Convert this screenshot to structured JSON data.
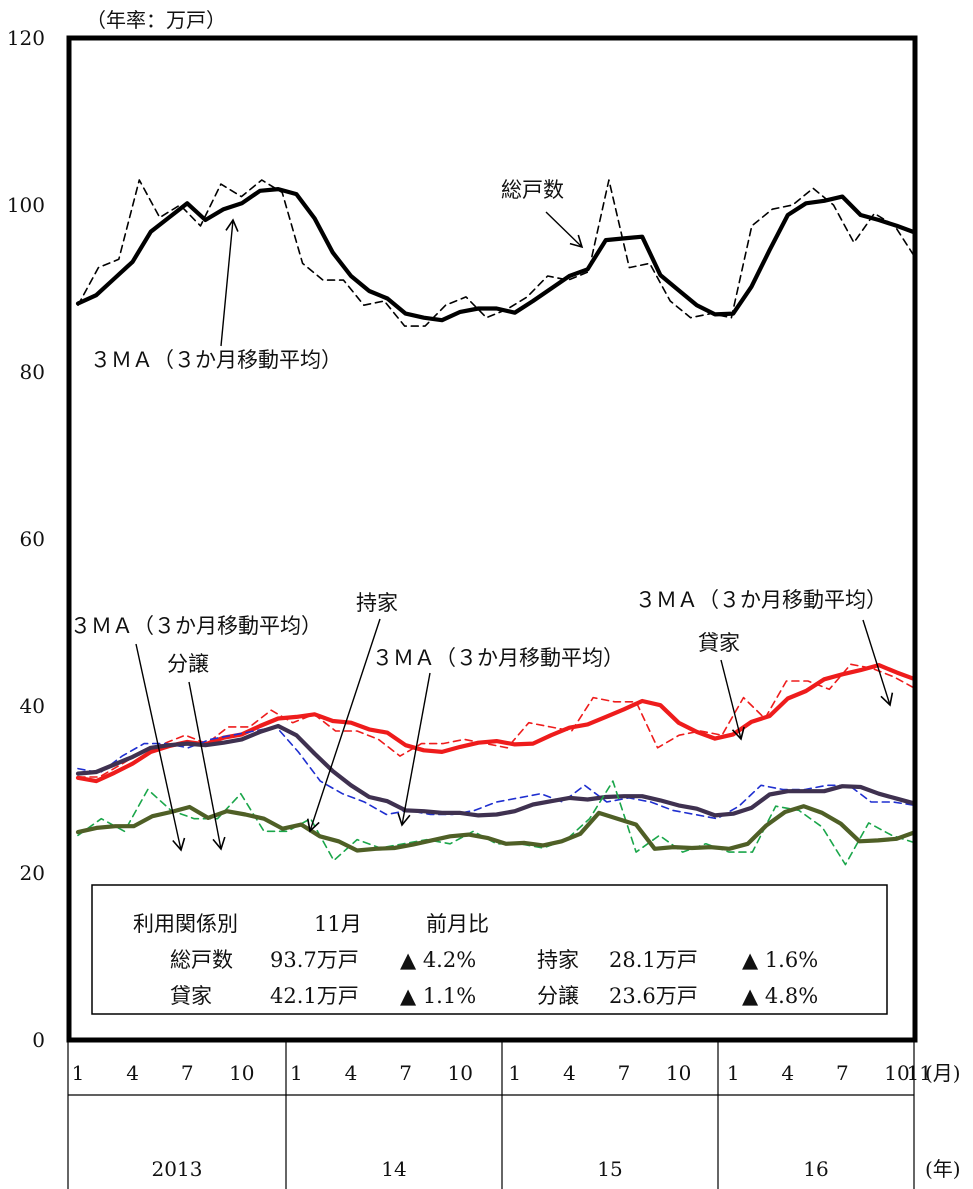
{
  "chart_data": {
    "type": "line",
    "title_top": "（年率：万戸）",
    "ylim": [
      0,
      120
    ],
    "yticks": [
      0,
      20,
      40,
      60,
      80,
      100,
      120
    ],
    "x_month_labels": [
      "1",
      "4",
      "7",
      "10",
      "1",
      "4",
      "7",
      "10",
      "1",
      "4",
      "7",
      "10",
      "1",
      "4",
      "7",
      "10",
      "11"
    ],
    "x_month_unit": "(月)",
    "x_year_labels": [
      "2013",
      "14",
      "15",
      "16"
    ],
    "x_year_unit": "(年)",
    "grid": false,
    "x_start": "2013-01",
    "x_end": "2016-11",
    "colors": {
      "total": "#000000",
      "rental": "#ee1c1c",
      "owner_ma": "#3f3150",
      "owner_raw": "#1f2fd0",
      "sale_ma": "#4f5f26",
      "sale_raw": "#1aa64a"
    },
    "series": [
      {
        "name": "総戸数",
        "style": "raw",
        "values": [
          88.0,
          92.5,
          93.5,
          103.0,
          98.5,
          100.0,
          97.5,
          102.5,
          101.0,
          103.0,
          101.5,
          93.0,
          91.0,
          91.0,
          88.0,
          88.5,
          85.5,
          85.5,
          88.0,
          89.0,
          86.5,
          87.5,
          89.0,
          91.5,
          91.0,
          92.0,
          103.0,
          92.5,
          93.0,
          88.5,
          86.5,
          87.0,
          86.5,
          97.5,
          99.5,
          100.0,
          102.0,
          100.0,
          95.5,
          99.0,
          97.5,
          93.7
        ]
      },
      {
        "name": "総戸数 3MA",
        "style": "ma",
        "values": [
          88.2,
          89.2,
          91.2,
          93.2,
          96.8,
          98.5,
          100.2,
          98.2,
          99.5,
          100.2,
          101.7,
          101.9,
          101.3,
          98.4,
          94.3,
          91.5,
          89.7,
          88.8,
          87.0,
          86.5,
          86.2,
          87.2,
          87.6,
          87.6,
          87.1,
          88.5,
          90.0,
          91.5,
          92.3,
          95.8,
          96.0,
          96.2,
          91.6,
          89.8,
          88.0,
          86.9,
          87.0,
          90.2,
          94.6,
          98.8,
          100.2,
          100.5,
          101.0,
          98.8,
          98.2,
          97.5,
          96.7
        ]
      },
      {
        "name": "貸家",
        "style": "raw",
        "values": [
          31.5,
          31.5,
          33.0,
          34.5,
          35.5,
          36.5,
          35.5,
          37.5,
          37.5,
          39.5,
          38.0,
          39.0,
          37.0,
          37.0,
          36.0,
          34.0,
          35.5,
          35.5,
          36.0,
          35.5,
          35.0,
          38.0,
          37.5,
          37.0,
          41.0,
          40.5,
          40.5,
          35.0,
          36.5,
          37.0,
          36.5,
          41.0,
          38.5,
          43.0,
          43.0,
          42.0,
          45.0,
          44.5,
          43.5,
          42.1
        ]
      },
      {
        "name": "貸家 3MA",
        "style": "ma",
        "values": [
          31.4,
          31.0,
          32.0,
          33.1,
          34.5,
          35.2,
          35.7,
          35.4,
          36.2,
          36.6,
          37.6,
          38.5,
          38.7,
          39.0,
          38.2,
          38.0,
          37.2,
          36.8,
          35.3,
          34.7,
          34.5,
          35.1,
          35.6,
          35.8,
          35.4,
          35.5,
          36.5,
          37.4,
          37.8,
          38.7,
          39.6,
          40.6,
          40.1,
          38.0,
          36.9,
          36.1,
          36.6,
          38.1,
          38.8,
          40.9,
          41.8,
          43.2,
          43.8,
          44.3,
          44.9,
          44.0,
          43.2
        ]
      },
      {
        "name": "持家",
        "style": "raw",
        "values": [
          32.5,
          32.0,
          34.0,
          35.5,
          35.5,
          35.0,
          36.0,
          36.5,
          37.0,
          37.5,
          34.5,
          31.0,
          29.5,
          28.5,
          27.0,
          27.5,
          27.0,
          27.0,
          27.5,
          28.5,
          29.0,
          29.5,
          28.5,
          30.5,
          28.5,
          29.0,
          28.5,
          27.5,
          27.0,
          26.5,
          28.0,
          30.5,
          30.0,
          30.0,
          30.5,
          30.5,
          28.5,
          28.5,
          28.1
        ]
      },
      {
        "name": "持家 3MA",
        "style": "ma",
        "values": [
          31.9,
          32.1,
          33.0,
          33.9,
          35.0,
          35.3,
          35.5,
          35.3,
          35.6,
          36.0,
          36.9,
          37.6,
          36.5,
          34.3,
          32.2,
          30.5,
          29.1,
          28.6,
          27.5,
          27.4,
          27.2,
          27.2,
          26.9,
          27.0,
          27.4,
          28.2,
          28.6,
          29.0,
          28.8,
          29.1,
          29.2,
          29.2,
          28.7,
          28.1,
          27.7,
          26.9,
          27.1,
          27.8,
          29.4,
          29.8,
          29.8,
          29.8,
          30.4,
          30.3,
          29.5,
          28.9,
          28.3
        ]
      },
      {
        "name": "分譲",
        "style": "raw",
        "values": [
          24.5,
          26.5,
          25.0,
          30.0,
          27.5,
          26.5,
          26.5,
          29.5,
          25.0,
          25.0,
          26.5,
          21.5,
          24.0,
          23.0,
          23.5,
          24.0,
          23.5,
          25.0,
          23.5,
          23.5,
          23.0,
          24.0,
          26.5,
          31.0,
          22.5,
          24.5,
          22.5,
          23.5,
          22.5,
          22.5,
          28.0,
          27.5,
          25.5,
          21.0,
          26.0,
          24.5,
          23.6
        ]
      },
      {
        "name": "分譲 3MA",
        "style": "ma",
        "values": [
          24.9,
          25.4,
          25.6,
          25.6,
          26.8,
          27.3,
          27.9,
          26.6,
          27.4,
          27.0,
          26.5,
          25.3,
          25.8,
          24.4,
          23.8,
          22.7,
          22.9,
          23.0,
          23.4,
          23.9,
          24.4,
          24.6,
          24.2,
          23.5,
          23.6,
          23.3,
          23.8,
          24.7,
          27.2,
          26.5,
          25.8,
          22.9,
          23.1,
          23.0,
          23.1,
          22.9,
          23.5,
          25.7,
          27.3,
          28.0,
          27.2,
          25.9,
          23.8,
          23.9,
          24.1,
          24.9
        ]
      }
    ],
    "annotations": {
      "total": "総戸数",
      "total_ma": "３ＭＡ（３か月移動平均）",
      "owner": "持家",
      "owner_ma": "３ＭＡ（３か月移動平均）",
      "rental": "貸家",
      "rental_ma": "３ＭＡ（３か月移動平均）",
      "sale": "分譲",
      "sale_ma": "３ＭＡ（３か月移動平均）"
    }
  },
  "legend_box": {
    "header_label": "利用関係別",
    "header_month": "11月",
    "header_change": "前月比",
    "rows": [
      {
        "name1": "総戸数",
        "value1": "93.7万戸",
        "change1": "▲ 4.2%",
        "name2": "持家",
        "value2": "28.1万戸",
        "change2": "▲ 1.6%"
      },
      {
        "name1": "貸家",
        "value1": "42.1万戸",
        "change1": "▲ 1.1%",
        "name2": "分譲",
        "value2": "23.6万戸",
        "change2": "▲ 4.8%"
      }
    ]
  }
}
